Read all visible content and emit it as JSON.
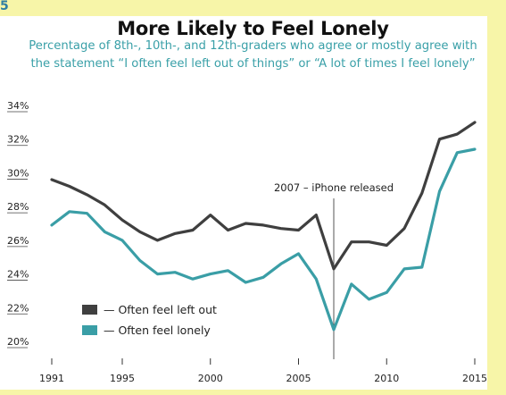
{
  "corner_mark": "5",
  "chart_data": {
    "type": "line",
    "title": "More Likely to Feel Lonely",
    "subtitle": [
      "Percentage of 8th-, 10th-, and 12th-graders who agree or mostly agree with",
      "the statement “I often feel left out of things” or “A lot of times I feel lonely”"
    ],
    "x": [
      1991,
      1992,
      1993,
      1994,
      1995,
      1996,
      1997,
      1998,
      1999,
      2000,
      2001,
      2002,
      2003,
      2004,
      2005,
      2006,
      2007,
      2008,
      2009,
      2010,
      2011,
      2012,
      2013,
      2014,
      2015
    ],
    "x_tick_labels": [
      "1991",
      "1995",
      "2000",
      "2005",
      "2010",
      "2015"
    ],
    "y_tick_labels": [
      "34%",
      "32%",
      "30%",
      "28%",
      "26%",
      "24%",
      "22%",
      "20%"
    ],
    "ylim": [
      20,
      34
    ],
    "xlim": [
      1991,
      2015
    ],
    "grid": false,
    "legend_position": "bottom-left",
    "series": [
      {
        "name": "Often feel left out",
        "color": "#3f3f3f",
        "values": [
          29.6,
          29.2,
          28.7,
          28.1,
          27.2,
          26.5,
          26.0,
          26.4,
          26.6,
          27.5,
          26.6,
          27.0,
          26.9,
          26.7,
          26.6,
          27.5,
          24.3,
          25.9,
          25.9,
          25.7,
          26.7,
          28.8,
          32.0,
          32.3,
          33.0
        ]
      },
      {
        "name": "Often feel lonely",
        "color": "#3a9ea6",
        "values": [
          26.9,
          27.7,
          27.6,
          26.5,
          26.0,
          24.8,
          24.0,
          24.1,
          23.7,
          24.0,
          24.2,
          23.5,
          23.8,
          24.6,
          25.2,
          23.7,
          20.7,
          23.4,
          22.5,
          22.9,
          24.3,
          24.4,
          28.9,
          31.2,
          31.4
        ]
      }
    ],
    "annotation": {
      "text": "2007 – iPhone released",
      "x": 2007
    }
  }
}
